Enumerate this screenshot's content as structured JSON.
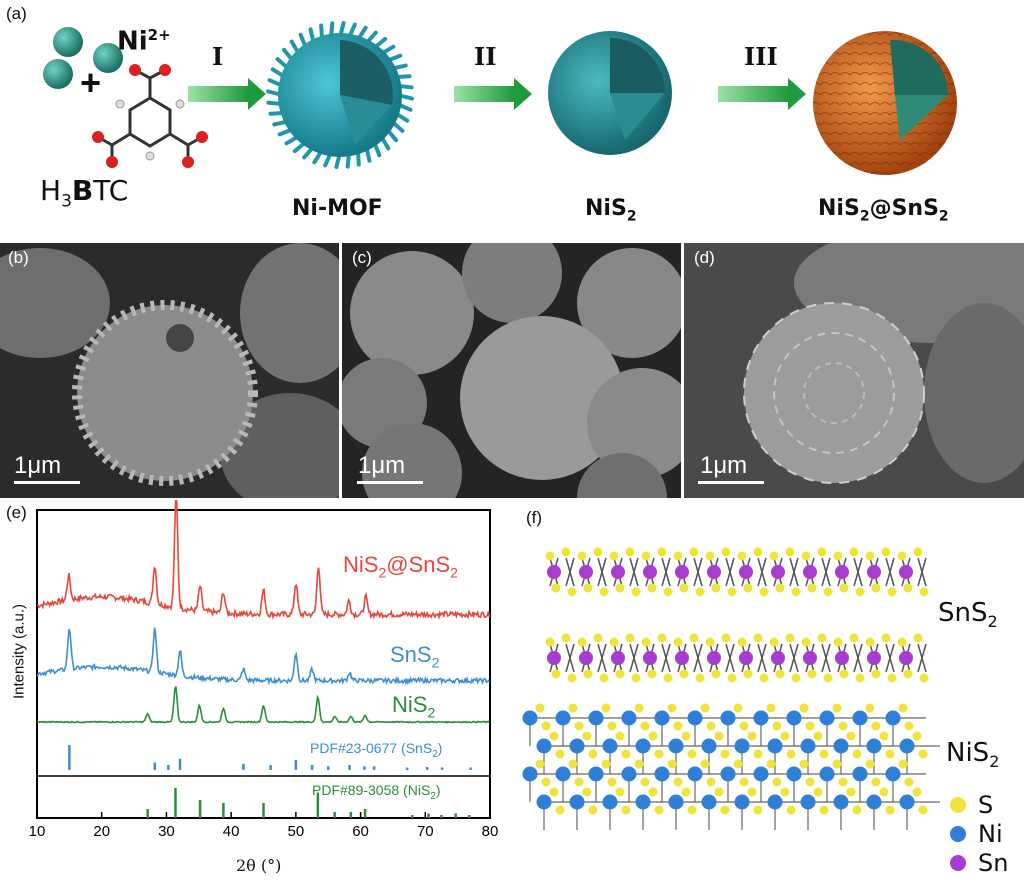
{
  "panel_a": {
    "label": "(a)",
    "ni_ion": "Ni",
    "ni_ion_charge": "2+",
    "plus": "+",
    "linker_prefix": "H",
    "linker_sub": "3",
    "linker_bold": "B",
    "linker_rest": "TC",
    "step1": "I",
    "step2": "II",
    "step3": "III",
    "stage1": "Ni-MOF",
    "stage2_main": "NiS",
    "stage2_sub": "2",
    "stage3_main": "NiS",
    "stage3_sub1": "2",
    "stage3_mid": "@SnS",
    "stage3_sub2": "2",
    "colors": {
      "mof": "#2aa6b8",
      "nis2": "#2f9aa3",
      "sns2": "#d96a1e",
      "arrow": "#2eaa4a"
    }
  },
  "panel_b": {
    "label": "(b)",
    "scale": "1μm"
  },
  "panel_c": {
    "label": "(c)",
    "scale": "1μm"
  },
  "panel_d": {
    "label": "(d)",
    "scale": "1μm"
  },
  "panel_e": {
    "label": "(e)",
    "ylabel": "Intensity (a.u.)",
    "xlabel": "2θ (°)",
    "series_labels": {
      "composite": {
        "main": "NiS",
        "sub1": "2",
        "mid": "@SnS",
        "sub2": "2"
      },
      "sns2": {
        "main": "SnS",
        "sub": "2"
      },
      "nis2": {
        "main": "NiS",
        "sub": "2"
      }
    },
    "ref_sns2": "PDF#23-0677 (SnS",
    "ref_sns2_tail": ")",
    "ref_nis2": "PDF#89-3058 (NiS",
    "ref_nis2_tail": ")",
    "colors": {
      "composite": "#e8463c",
      "sns2": "#3c8fd0",
      "nis2": "#2e8b3e"
    }
  },
  "chart_data": {
    "type": "line",
    "xlim": [
      10,
      80
    ],
    "x_ticks": [
      "10",
      "20",
      "30",
      "40",
      "50",
      "60",
      "70",
      "80"
    ],
    "series": [
      {
        "name": "NiS2@SnS2",
        "peaks": [
          [
            14.9,
            0.35
          ],
          [
            28.2,
            0.55
          ],
          [
            31.5,
            1.6
          ],
          [
            35.2,
            0.35
          ],
          [
            38.8,
            0.3
          ],
          [
            45.0,
            0.35
          ],
          [
            50.0,
            0.45
          ],
          [
            53.5,
            0.7
          ],
          [
            58.2,
            0.2
          ],
          [
            60.8,
            0.25
          ]
        ]
      },
      {
        "name": "SnS2",
        "peaks": [
          [
            15.0,
            0.75
          ],
          [
            28.2,
            0.8
          ],
          [
            32.1,
            0.45
          ],
          [
            41.9,
            0.2
          ],
          [
            50.0,
            0.5
          ],
          [
            52.5,
            0.2
          ],
          [
            58.3,
            0.15
          ]
        ]
      },
      {
        "name": "NiS2",
        "peaks": [
          [
            27.1,
            0.15
          ],
          [
            31.4,
            0.65
          ],
          [
            35.1,
            0.3
          ],
          [
            38.8,
            0.25
          ],
          [
            45.0,
            0.3
          ],
          [
            53.4,
            0.45
          ],
          [
            56.0,
            0.1
          ],
          [
            58.5,
            0.1
          ],
          [
            60.7,
            0.12
          ]
        ]
      }
    ],
    "ref_sns2_sticks": [
      [
        15.0,
        1.0
      ],
      [
        28.2,
        0.3
      ],
      [
        30.3,
        0.2
      ],
      [
        32.1,
        0.45
      ],
      [
        41.9,
        0.25
      ],
      [
        46.1,
        0.2
      ],
      [
        50.0,
        0.4
      ],
      [
        52.5,
        0.2
      ],
      [
        55.0,
        0.15
      ],
      [
        58.3,
        0.2
      ],
      [
        60.6,
        0.15
      ],
      [
        62.1,
        0.15
      ],
      [
        67.2,
        0.1
      ],
      [
        70.3,
        0.12
      ],
      [
        72.6,
        0.1
      ],
      [
        77.0,
        0.1
      ]
    ],
    "ref_nis2_sticks": [
      [
        27.1,
        0.3
      ],
      [
        31.4,
        1.0
      ],
      [
        35.2,
        0.6
      ],
      [
        38.8,
        0.5
      ],
      [
        45.0,
        0.5
      ],
      [
        53.4,
        0.85
      ],
      [
        56.0,
        0.2
      ],
      [
        58.5,
        0.2
      ],
      [
        60.7,
        0.3
      ],
      [
        68.0,
        0.1
      ],
      [
        70.5,
        0.15
      ],
      [
        72.5,
        0.1
      ],
      [
        74.7,
        0.15
      ],
      [
        76.8,
        0.1
      ]
    ]
  },
  "panel_f": {
    "label": "(f)",
    "sns2_main": "SnS",
    "sns2_sub": "2",
    "nis2_main": "NiS",
    "nis2_sub": "2",
    "legend": [
      {
        "label": "S",
        "color": "#f0e43a"
      },
      {
        "label": "Ni",
        "color": "#2f7fd6"
      },
      {
        "label": "Sn",
        "color": "#a83cd0"
      }
    ]
  }
}
